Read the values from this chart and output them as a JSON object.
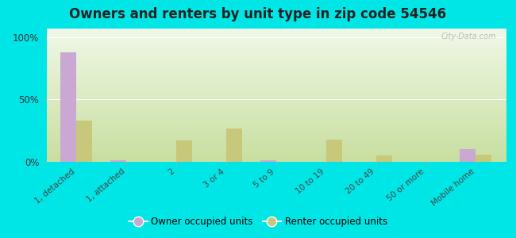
{
  "title": "Owners and renters by unit type in zip code 54546",
  "categories": [
    "1, detached",
    "1, attached",
    "2",
    "3 or 4",
    "5 to 9",
    "10 to 19",
    "20 to 49",
    "50 or more",
    "Mobile home"
  ],
  "owner_values": [
    88,
    1,
    0,
    0,
    1,
    0,
    0,
    0,
    10
  ],
  "renter_values": [
    33,
    0,
    17,
    27,
    0,
    18,
    5,
    0,
    6
  ],
  "owner_color": "#c9a8d4",
  "renter_color": "#c8c87a",
  "bg_top": "#c8dfa0",
  "bg_bottom": "#f0f8e8",
  "outer_bg": "#00e5e5",
  "yticks": [
    0,
    50,
    100
  ],
  "ylabels": [
    "0%",
    "50%",
    "100%"
  ],
  "ylim": [
    0,
    107
  ],
  "legend_owner": "Owner occupied units",
  "legend_renter": "Renter occupied units",
  "watermark": "City-Data.com",
  "title_fontsize": 12,
  "tick_fontsize": 7.5,
  "ytick_fontsize": 8.5
}
